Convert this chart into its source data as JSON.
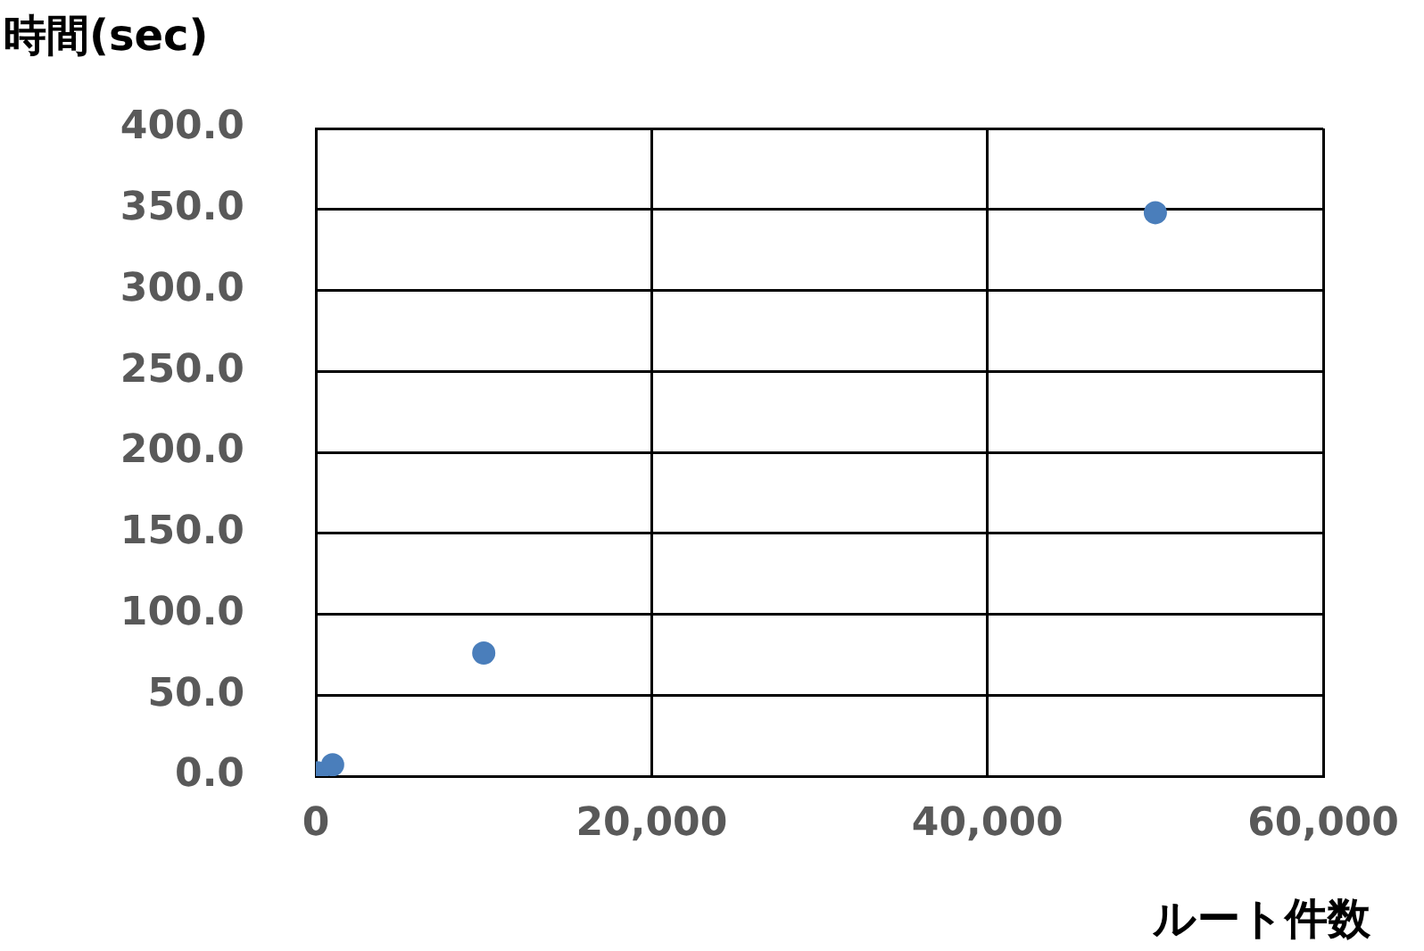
{
  "chart_data": {
    "type": "scatter",
    "xlabel": "ルート件数",
    "ylabel": "時間(sec)",
    "x": [
      100,
      1000,
      10000,
      50000
    ],
    "series": [
      {
        "color": "#4a7ebb",
        "values": [
          2,
          7,
          76,
          348
        ]
      }
    ],
    "xlim": [
      0,
      60000
    ],
    "ylim": [
      0,
      400
    ],
    "xticks": [
      {
        "value": 0,
        "label": "0"
      },
      {
        "value": 20000,
        "label": "20,000"
      },
      {
        "value": 40000,
        "label": "40,000"
      },
      {
        "value": 60000,
        "label": "60,000"
      }
    ],
    "yticks": [
      {
        "value": 0,
        "label": "0.0"
      },
      {
        "value": 50,
        "label": "50.0"
      },
      {
        "value": 100,
        "label": "100.0"
      },
      {
        "value": 150,
        "label": "150.0"
      },
      {
        "value": 200,
        "label": "200.0"
      },
      {
        "value": 250,
        "label": "250.0"
      },
      {
        "value": 300,
        "label": "300.0"
      },
      {
        "value": 350,
        "label": "350.0"
      },
      {
        "value": 400,
        "label": "400.0"
      }
    ],
    "grid": true,
    "legend": false,
    "marker": "circle"
  }
}
